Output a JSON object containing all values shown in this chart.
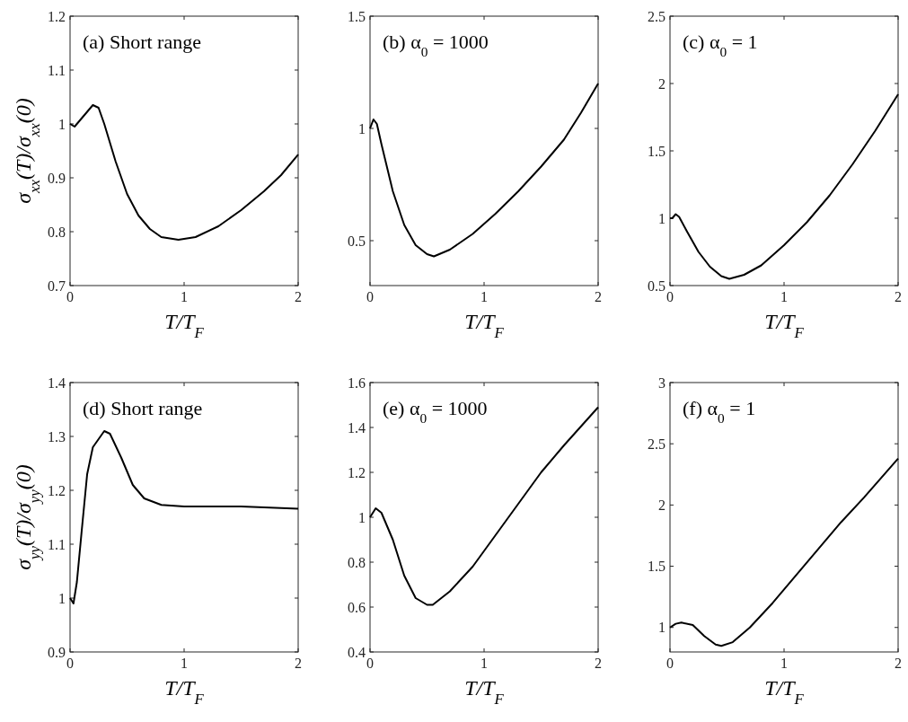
{
  "chart_data": [
    {
      "type": "line",
      "title": "(a) Short range",
      "xlabel": "T/T$_{F}$",
      "ylabel": "σ$_{xx}$(T)/σ$_{xx}$(0)",
      "xlim": [
        0,
        2
      ],
      "xticks": [
        0,
        1,
        2
      ],
      "ylim": [
        0.7,
        1.2
      ],
      "yticks": [
        0.7,
        0.8,
        0.9,
        1,
        1.1,
        1.2
      ],
      "grid": false,
      "line_style": "solid",
      "marker": "none",
      "series": [
        {
          "color": "#000000",
          "x": [
            0,
            0.04,
            0.1,
            0.2,
            0.25,
            0.3,
            0.4,
            0.5,
            0.6,
            0.7,
            0.8,
            0.95,
            1.1,
            1.3,
            1.5,
            1.7,
            1.85,
            2
          ],
          "values": [
            1.0,
            0.995,
            1.01,
            1.035,
            1.03,
            1.0,
            0.93,
            0.87,
            0.83,
            0.805,
            0.79,
            0.785,
            0.79,
            0.81,
            0.84,
            0.875,
            0.905,
            0.943
          ]
        }
      ]
    },
    {
      "type": "line",
      "title": "(b) α$_{0}$ = 1000",
      "xlabel": "T/T$_{F}$",
      "xlim": [
        0,
        2
      ],
      "xticks": [
        0,
        1,
        2
      ],
      "ylim": [
        0.3,
        1.5
      ],
      "yticks": [
        0.5,
        1,
        1.5
      ],
      "grid": false,
      "line_style": "solid",
      "marker": "none",
      "series": [
        {
          "color": "#000000",
          "x": [
            0,
            0.03,
            0.06,
            0.1,
            0.2,
            0.3,
            0.4,
            0.5,
            0.56,
            0.7,
            0.9,
            1.1,
            1.3,
            1.5,
            1.7,
            1.85,
            2
          ],
          "values": [
            1.0,
            1.04,
            1.02,
            0.93,
            0.72,
            0.57,
            0.48,
            0.44,
            0.43,
            0.46,
            0.53,
            0.62,
            0.72,
            0.83,
            0.95,
            1.07,
            1.2
          ]
        }
      ]
    },
    {
      "type": "line",
      "title": "(c) α$_{0}$ = 1",
      "xlabel": "T/T$_{F}$",
      "xlim": [
        0,
        2
      ],
      "xticks": [
        0,
        1,
        2
      ],
      "ylim": [
        0.5,
        2.5
      ],
      "yticks": [
        0.5,
        1,
        1.5,
        2,
        2.5
      ],
      "grid": false,
      "line_style": "solid",
      "marker": "none",
      "series": [
        {
          "color": "#000000",
          "x": [
            0,
            0.02,
            0.05,
            0.08,
            0.15,
            0.25,
            0.35,
            0.45,
            0.52,
            0.65,
            0.8,
            1,
            1.2,
            1.4,
            1.6,
            1.8,
            2
          ],
          "values": [
            1.0,
            1.0,
            1.03,
            1.01,
            0.9,
            0.75,
            0.64,
            0.57,
            0.55,
            0.58,
            0.65,
            0.8,
            0.97,
            1.17,
            1.4,
            1.65,
            1.92
          ]
        }
      ]
    },
    {
      "type": "line",
      "title": "(d) Short range",
      "xlabel": "T/T$_{F}$",
      "ylabel": "σ$_{yy}$(T)/σ$_{yy}$(0)",
      "xlim": [
        0,
        2
      ],
      "xticks": [
        0,
        1,
        2
      ],
      "ylim": [
        0.9,
        1.4
      ],
      "yticks": [
        0.9,
        1,
        1.1,
        1.2,
        1.3,
        1.4
      ],
      "grid": false,
      "line_style": "solid",
      "marker": "none",
      "series": [
        {
          "color": "#000000",
          "x": [
            0,
            0.03,
            0.06,
            0.1,
            0.15,
            0.2,
            0.3,
            0.35,
            0.45,
            0.55,
            0.65,
            0.8,
            1,
            1.5,
            2
          ],
          "values": [
            1.0,
            0.99,
            1.03,
            1.12,
            1.23,
            1.28,
            1.31,
            1.305,
            1.26,
            1.21,
            1.185,
            1.173,
            1.17,
            1.17,
            1.166
          ]
        }
      ]
    },
    {
      "type": "line",
      "title": "(e) α$_{0}$ = 1000",
      "xlabel": "T/T$_{F}$",
      "xlim": [
        0,
        2
      ],
      "xticks": [
        0,
        1,
        2
      ],
      "ylim": [
        0.4,
        1.6
      ],
      "yticks": [
        0.4,
        0.6,
        0.8,
        1,
        1.2,
        1.4,
        1.6
      ],
      "grid": false,
      "line_style": "solid",
      "marker": "none",
      "series": [
        {
          "color": "#000000",
          "x": [
            0,
            0.05,
            0.1,
            0.2,
            0.3,
            0.4,
            0.5,
            0.55,
            0.7,
            0.9,
            1.1,
            1.3,
            1.5,
            1.7,
            2
          ],
          "values": [
            1.0,
            1.04,
            1.02,
            0.9,
            0.74,
            0.64,
            0.61,
            0.61,
            0.67,
            0.78,
            0.92,
            1.06,
            1.2,
            1.32,
            1.49
          ]
        }
      ]
    },
    {
      "type": "line",
      "title": "(f) α$_{0}$ = 1",
      "xlabel": "T/T$_{F}$",
      "xlim": [
        0,
        2
      ],
      "xticks": [
        0,
        1,
        2
      ],
      "ylim": [
        0.8,
        3
      ],
      "yticks": [
        1,
        1.5,
        2,
        2.5,
        3
      ],
      "grid": false,
      "line_style": "solid",
      "marker": "none",
      "series": [
        {
          "color": "#000000",
          "x": [
            0,
            0.05,
            0.1,
            0.2,
            0.3,
            0.4,
            0.45,
            0.55,
            0.7,
            0.9,
            1.1,
            1.3,
            1.5,
            1.7,
            1.85,
            2
          ],
          "values": [
            1.0,
            1.03,
            1.04,
            1.02,
            0.93,
            0.86,
            0.85,
            0.88,
            1.0,
            1.2,
            1.42,
            1.64,
            1.86,
            2.06,
            2.22,
            2.38
          ]
        }
      ]
    }
  ]
}
